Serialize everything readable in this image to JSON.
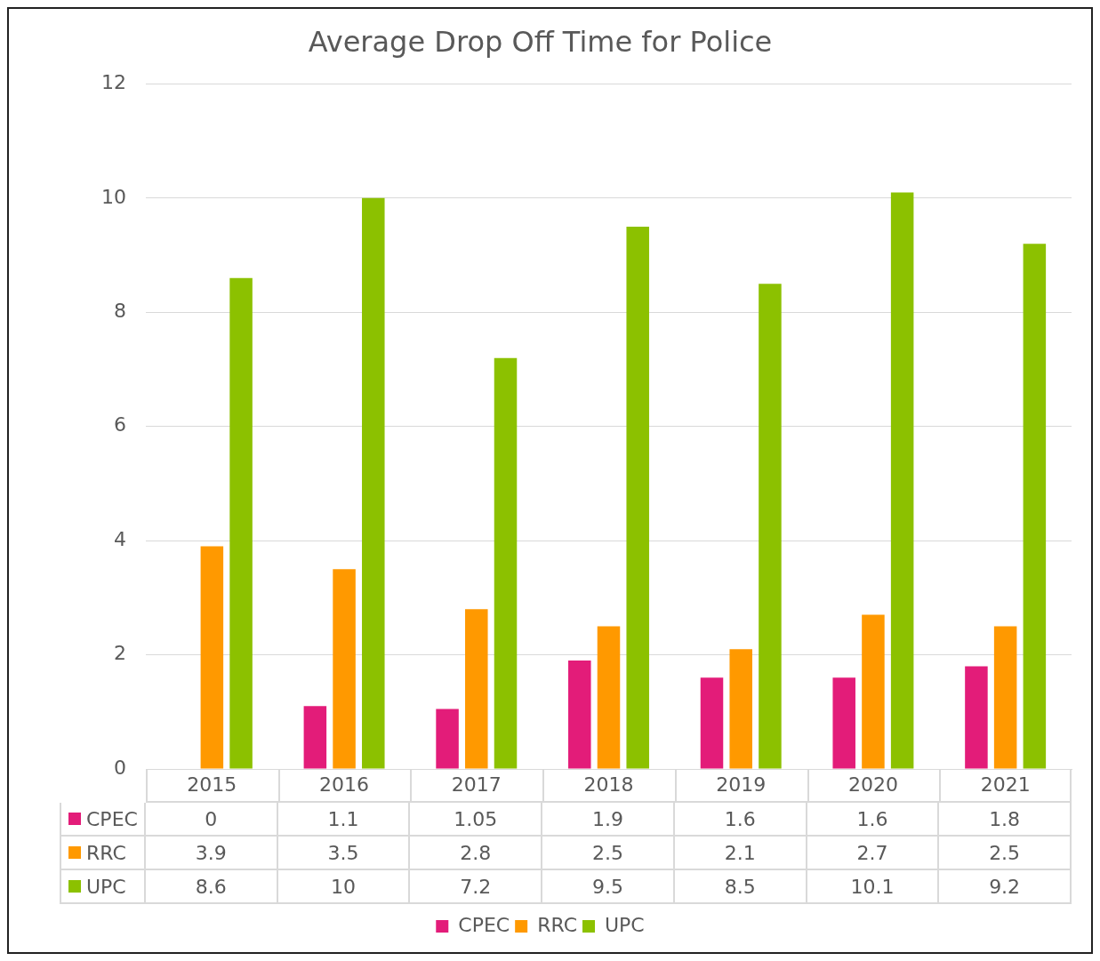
{
  "chart_data": {
    "type": "bar",
    "title": "Average Drop Off Time for Police",
    "categories": [
      "2015",
      "2016",
      "2017",
      "2018",
      "2019",
      "2020",
      "2021"
    ],
    "series": [
      {
        "name": "CPEC",
        "color": "#e31c79",
        "values": [
          0,
          1.1,
          1.05,
          1.9,
          1.6,
          1.6,
          1.8
        ]
      },
      {
        "name": "RRC",
        "color": "#ff9900",
        "values": [
          3.9,
          3.5,
          2.8,
          2.5,
          2.1,
          2.7,
          2.5
        ]
      },
      {
        "name": "UPC",
        "color": "#8cc100",
        "values": [
          8.6,
          10,
          7.2,
          9.5,
          8.5,
          10.1,
          9.2
        ]
      }
    ],
    "ylim": [
      0,
      12
    ],
    "yticks": [
      0,
      2,
      4,
      6,
      8,
      10,
      12
    ],
    "grid": "y",
    "legend": "bottom",
    "data_labels": true
  }
}
